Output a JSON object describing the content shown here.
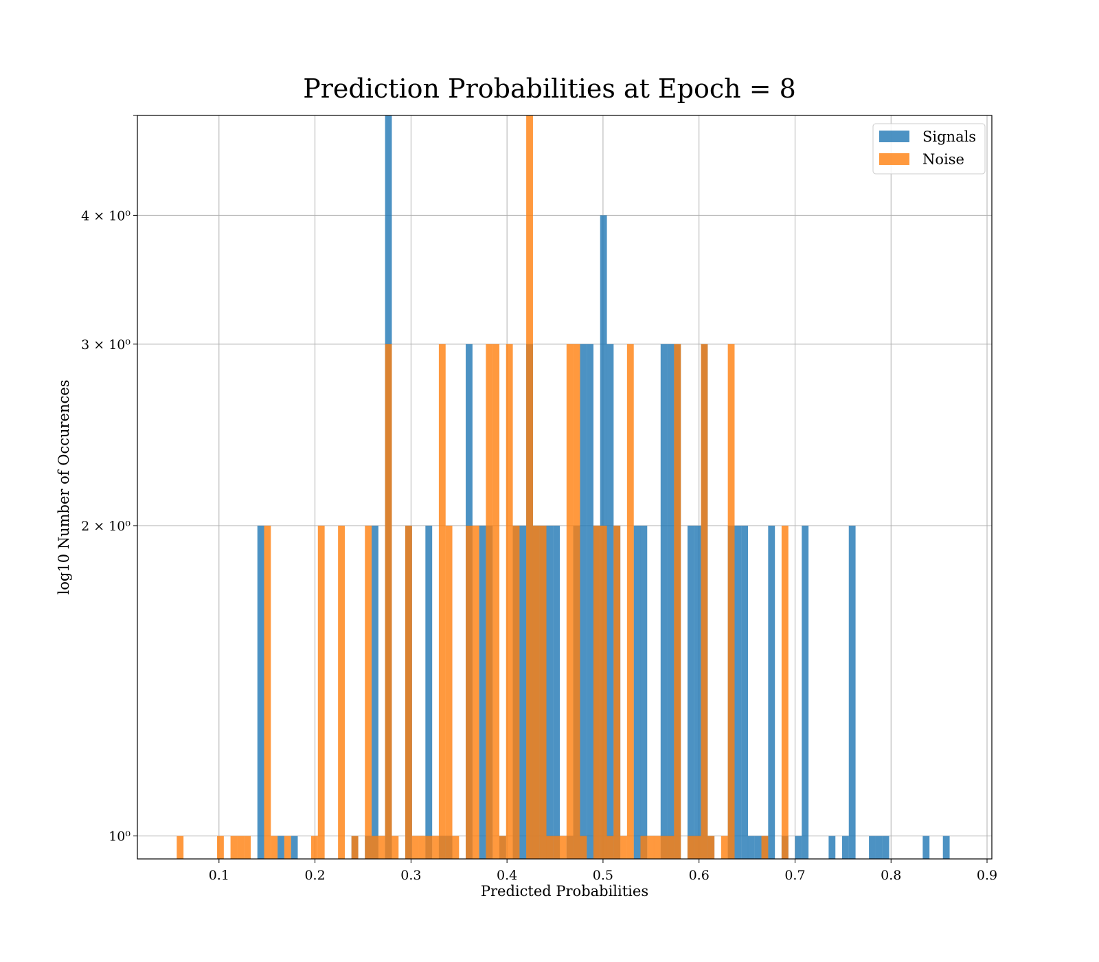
{
  "chart_data": {
    "type": "bar",
    "title": "Prediction Probabilities at Epoch = 8",
    "xlabel": "Predicted Probabilities",
    "ylabel": "log10 Number of Occurences",
    "yscale": "log",
    "xlim": [
      0.015,
      0.905
    ],
    "ylim": [
      0.95,
      5.0
    ],
    "bin_width": 0.00705,
    "x_ticks": [
      {
        "value": 0.1,
        "label": "0.1"
      },
      {
        "value": 0.2,
        "label": "0.2"
      },
      {
        "value": 0.3,
        "label": "0.3"
      },
      {
        "value": 0.4,
        "label": "0.4"
      },
      {
        "value": 0.5,
        "label": "0.5"
      },
      {
        "value": 0.6,
        "label": "0.6"
      },
      {
        "value": 0.7,
        "label": "0.7"
      },
      {
        "value": 0.8,
        "label": "0.8"
      },
      {
        "value": 0.9,
        "label": "0.9"
      }
    ],
    "y_ticks": [
      {
        "value": 1,
        "label": "10⁰"
      },
      {
        "value": 2,
        "label": "2 × 10⁰"
      },
      {
        "value": 3,
        "label": "3 × 10⁰"
      },
      {
        "value": 4,
        "label": "4 × 10⁰"
      }
    ],
    "grid": true,
    "legend_position": "top-right",
    "series": [
      {
        "name": "Signals",
        "color": "#1f77b4",
        "bins": [
          [
            0.14,
            2
          ],
          [
            0.161,
            1
          ],
          [
            0.175,
            1
          ],
          [
            0.238,
            1
          ],
          [
            0.252,
            1
          ],
          [
            0.259,
            2
          ],
          [
            0.273,
            5
          ],
          [
            0.294,
            2
          ],
          [
            0.315,
            2
          ],
          [
            0.329,
            1
          ],
          [
            0.336,
            1
          ],
          [
            0.357,
            3
          ],
          [
            0.371,
            2
          ],
          [
            0.378,
            2
          ],
          [
            0.392,
            1
          ],
          [
            0.406,
            2
          ],
          [
            0.413,
            2
          ],
          [
            0.42,
            3
          ],
          [
            0.427,
            2
          ],
          [
            0.434,
            2
          ],
          [
            0.441,
            2
          ],
          [
            0.448,
            2
          ],
          [
            0.462,
            1
          ],
          [
            0.469,
            2
          ],
          [
            0.476,
            3
          ],
          [
            0.483,
            3
          ],
          [
            0.49,
            2
          ],
          [
            0.497,
            4
          ],
          [
            0.504,
            3
          ],
          [
            0.511,
            2
          ],
          [
            0.532,
            2
          ],
          [
            0.539,
            2
          ],
          [
            0.56,
            3
          ],
          [
            0.567,
            3
          ],
          [
            0.574,
            3
          ],
          [
            0.588,
            2
          ],
          [
            0.595,
            2
          ],
          [
            0.602,
            3
          ],
          [
            0.609,
            1
          ],
          [
            0.63,
            2
          ],
          [
            0.637,
            2
          ],
          [
            0.644,
            2
          ],
          [
            0.651,
            1
          ],
          [
            0.658,
            1
          ],
          [
            0.665,
            1
          ],
          [
            0.672,
            2
          ],
          [
            0.686,
            1
          ],
          [
            0.7,
            1
          ],
          [
            0.707,
            2
          ],
          [
            0.735,
            1
          ],
          [
            0.749,
            1
          ],
          [
            0.756,
            2
          ],
          [
            0.777,
            1
          ],
          [
            0.784,
            1
          ],
          [
            0.791,
            1
          ],
          [
            0.833,
            1
          ],
          [
            0.854,
            1
          ]
        ]
      },
      {
        "name": "Noise",
        "color": "#ff7f0e",
        "bins": [
          [
            0.056,
            1
          ],
          [
            0.098,
            1
          ],
          [
            0.112,
            1
          ],
          [
            0.119,
            1
          ],
          [
            0.126,
            1
          ],
          [
            0.147,
            2
          ],
          [
            0.154,
            1
          ],
          [
            0.168,
            1
          ],
          [
            0.196,
            1
          ],
          [
            0.203,
            2
          ],
          [
            0.224,
            2
          ],
          [
            0.238,
            1
          ],
          [
            0.252,
            2
          ],
          [
            0.259,
            1
          ],
          [
            0.266,
            1
          ],
          [
            0.273,
            3
          ],
          [
            0.28,
            1
          ],
          [
            0.294,
            2
          ],
          [
            0.301,
            1
          ],
          [
            0.308,
            1
          ],
          [
            0.315,
            1
          ],
          [
            0.322,
            1
          ],
          [
            0.329,
            3
          ],
          [
            0.336,
            2
          ],
          [
            0.343,
            1
          ],
          [
            0.357,
            2
          ],
          [
            0.364,
            2
          ],
          [
            0.378,
            3
          ],
          [
            0.385,
            3
          ],
          [
            0.392,
            1
          ],
          [
            0.399,
            3
          ],
          [
            0.406,
            2
          ],
          [
            0.42,
            5
          ],
          [
            0.427,
            2
          ],
          [
            0.434,
            2
          ],
          [
            0.441,
            1
          ],
          [
            0.448,
            1
          ],
          [
            0.455,
            1
          ],
          [
            0.462,
            3
          ],
          [
            0.469,
            3
          ],
          [
            0.476,
            1
          ],
          [
            0.49,
            2
          ],
          [
            0.497,
            2
          ],
          [
            0.504,
            1
          ],
          [
            0.511,
            2
          ],
          [
            0.518,
            1
          ],
          [
            0.525,
            3
          ],
          [
            0.539,
            1
          ],
          [
            0.546,
            1
          ],
          [
            0.553,
            1
          ],
          [
            0.56,
            1
          ],
          [
            0.567,
            1
          ],
          [
            0.574,
            3
          ],
          [
            0.588,
            1
          ],
          [
            0.595,
            1
          ],
          [
            0.602,
            3
          ],
          [
            0.609,
            1
          ],
          [
            0.623,
            1
          ],
          [
            0.63,
            3
          ],
          [
            0.665,
            1
          ],
          [
            0.686,
            2
          ]
        ]
      }
    ]
  }
}
